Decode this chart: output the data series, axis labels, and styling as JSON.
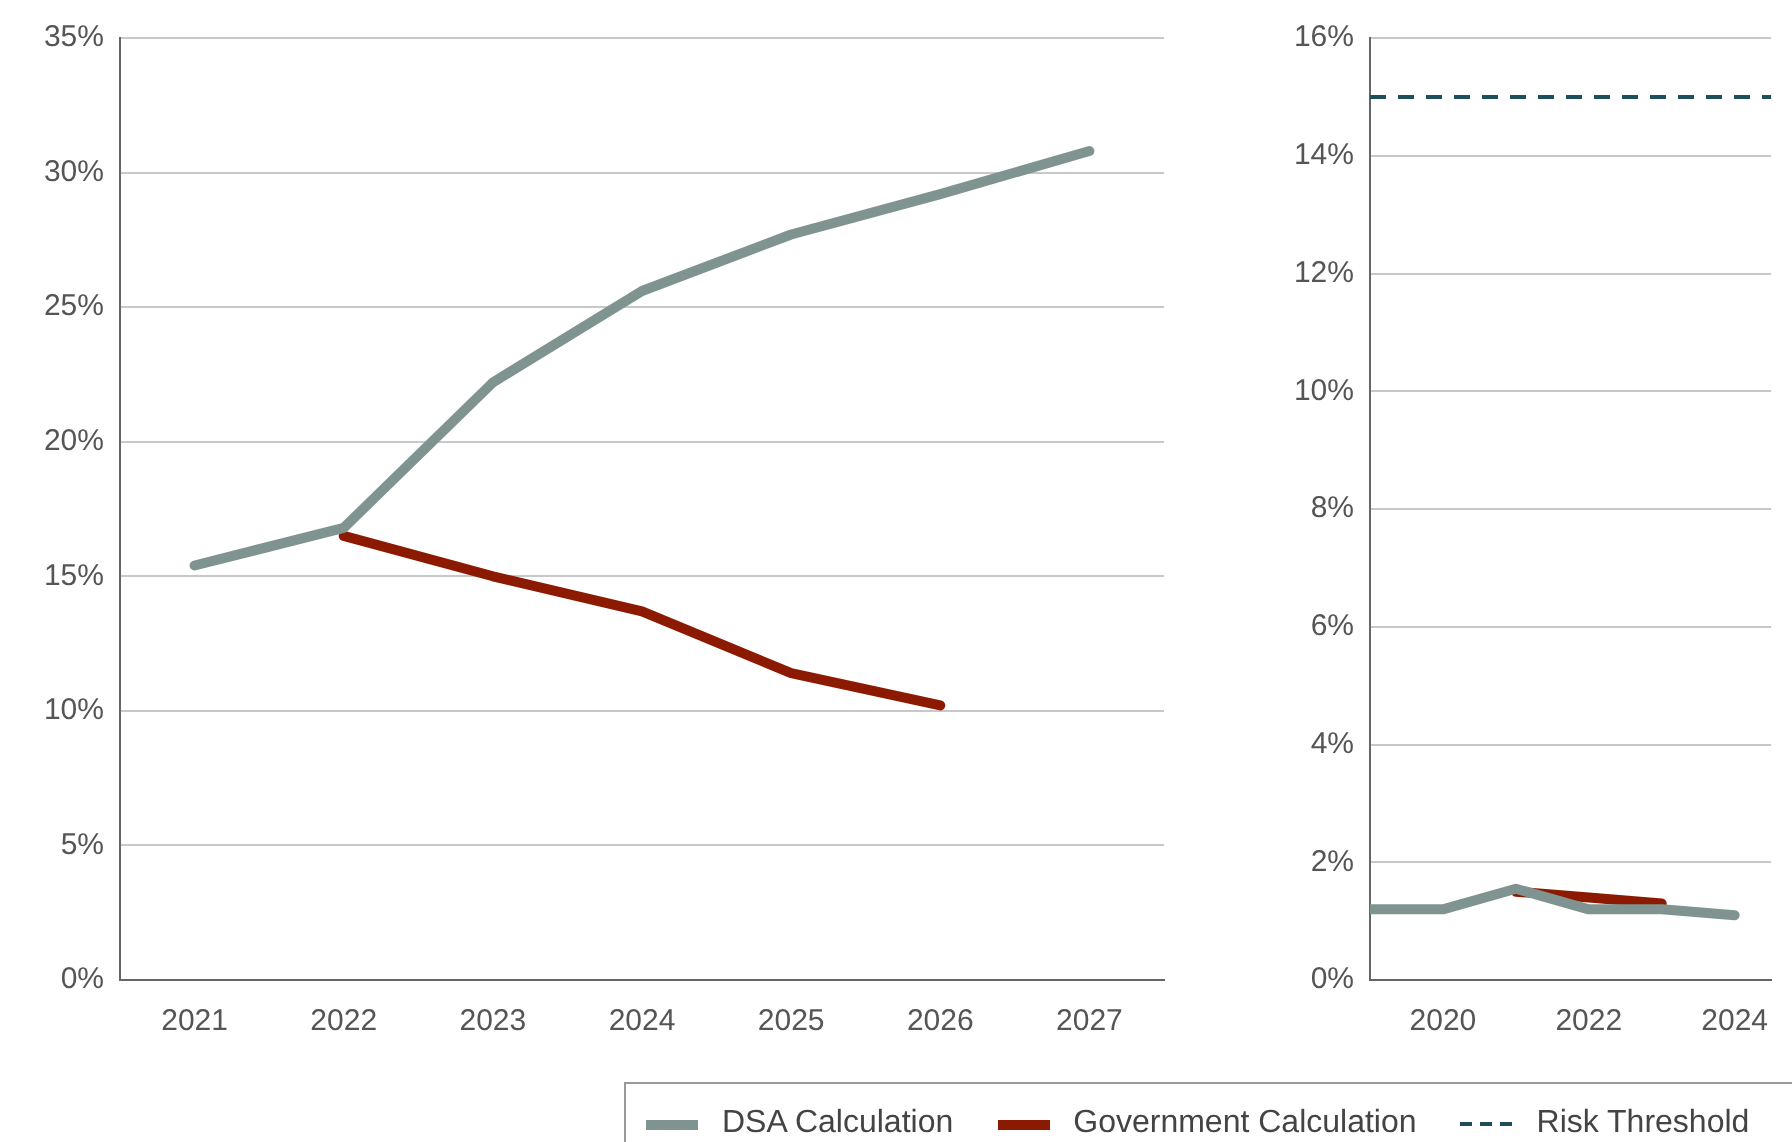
{
  "chart_data": [
    {
      "type": "line",
      "categories": [
        "2021",
        "2022",
        "2023",
        "2024",
        "2025",
        "2026",
        "2027"
      ],
      "series": [
        {
          "name": "DSA Calculation",
          "color": "#7f9490",
          "values": [
            15.4,
            16.8,
            22.2,
            25.6,
            27.7,
            29.2,
            30.8
          ]
        },
        {
          "name": "Government Calculation",
          "color": "#8b1a00",
          "values": [
            null,
            16.5,
            15.0,
            13.7,
            11.4,
            10.2,
            null
          ]
        }
      ],
      "ylim": [
        0,
        35
      ],
      "yticks": [
        {
          "value": 0,
          "label": "0%"
        },
        {
          "value": 5,
          "label": "5%"
        },
        {
          "value": 10,
          "label": "10%"
        },
        {
          "value": 15,
          "label": "15%"
        },
        {
          "value": 20,
          "label": "20%"
        },
        {
          "value": 25,
          "label": "25%"
        },
        {
          "value": 30,
          "label": "30%"
        },
        {
          "value": 35,
          "label": "35%"
        }
      ],
      "grid": "y",
      "legend": "bottom",
      "marker": "none",
      "line_style": "solid"
    },
    {
      "type": "line",
      "series": [
        {
          "name": "DSA Calculation",
          "color": "#7f9490",
          "x": [
            2019,
            2020,
            2021,
            2022,
            2023,
            2024
          ],
          "values": [
            1.2,
            1.2,
            1.55,
            1.2,
            1.2,
            1.1
          ]
        },
        {
          "name": "Government Calculation",
          "color": "#8b1a00",
          "x": [
            2021,
            2022,
            2023
          ],
          "values": [
            1.5,
            1.4,
            1.3
          ]
        }
      ],
      "xlim": [
        2019,
        2024.5
      ],
      "xticks": [
        2020,
        2022,
        2024
      ],
      "ylim": [
        0,
        16
      ],
      "yticks": [
        {
          "value": 0,
          "label": "0%"
        },
        {
          "value": 2,
          "label": "2%"
        },
        {
          "value": 4,
          "label": "4%"
        },
        {
          "value": 6,
          "label": "6%"
        },
        {
          "value": 8,
          "label": "8%"
        },
        {
          "value": 10,
          "label": "10%"
        },
        {
          "value": 12,
          "label": "12%"
        },
        {
          "value": 14,
          "label": "14%"
        },
        {
          "value": 16,
          "label": "16%"
        }
      ],
      "ref_lines": [
        {
          "axis": "y",
          "value": 15,
          "label": "Risk Threshold",
          "color": "#1f4e5a",
          "line_style": "dashed"
        }
      ],
      "grid": "y",
      "legend": "bottom",
      "marker": "none",
      "line_style": "solid"
    }
  ]
}
